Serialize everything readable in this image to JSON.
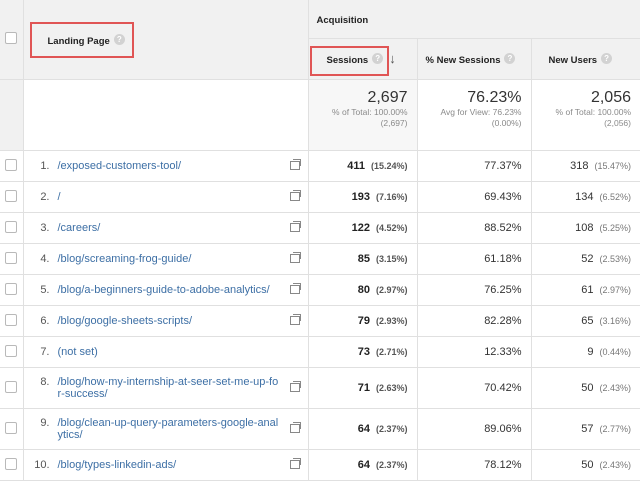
{
  "header": {
    "landing_page": "Landing Page",
    "acquisition": "Acquisition",
    "sessions": "Sessions",
    "new_sessions_pct": "% New Sessions",
    "new_users": "New Users",
    "help_glyph": "?",
    "sort_glyph": "↓"
  },
  "totals": {
    "sessions": {
      "value": "2,697",
      "sub1": "% of Total: 100.00%",
      "sub2": "(2,697)"
    },
    "new_sessions_pct": {
      "value": "76.23%",
      "sub1": "Avg for View: 76.23%",
      "sub2": "(0.00%)"
    },
    "new_users": {
      "value": "2,056",
      "sub1": "% of Total: 100.00%",
      "sub2": "(2,056)"
    }
  },
  "rows": [
    {
      "num": "1.",
      "page": "/exposed-customers-tool/",
      "sessions": "411",
      "sessions_pct": "(15.24%)",
      "new_pct": "77.37%",
      "new_users": "318",
      "new_users_pct": "(15.47%)"
    },
    {
      "num": "2.",
      "page": "/",
      "sessions": "193",
      "sessions_pct": "(7.16%)",
      "new_pct": "69.43%",
      "new_users": "134",
      "new_users_pct": "(6.52%)"
    },
    {
      "num": "3.",
      "page": "/careers/",
      "sessions": "122",
      "sessions_pct": "(4.52%)",
      "new_pct": "88.52%",
      "new_users": "108",
      "new_users_pct": "(5.25%)"
    },
    {
      "num": "4.",
      "page": "/blog/screaming-frog-guide/",
      "sessions": "85",
      "sessions_pct": "(3.15%)",
      "new_pct": "61.18%",
      "new_users": "52",
      "new_users_pct": "(2.53%)"
    },
    {
      "num": "5.",
      "page": "/blog/a-beginners-guide-to-adobe-analytics/",
      "sessions": "80",
      "sessions_pct": "(2.97%)",
      "new_pct": "76.25%",
      "new_users": "61",
      "new_users_pct": "(2.97%)"
    },
    {
      "num": "6.",
      "page": "/blog/google-sheets-scripts/",
      "sessions": "79",
      "sessions_pct": "(2.93%)",
      "new_pct": "82.28%",
      "new_users": "65",
      "new_users_pct": "(3.16%)"
    },
    {
      "num": "7.",
      "page": "(not set)",
      "sessions": "73",
      "sessions_pct": "(2.71%)",
      "new_pct": "12.33%",
      "new_users": "9",
      "new_users_pct": "(0.44%)"
    },
    {
      "num": "8.",
      "page": "/blog/how-my-internship-at-seer-set-me-up-for-success/",
      "sessions": "71",
      "sessions_pct": "(2.63%)",
      "new_pct": "70.42%",
      "new_users": "50",
      "new_users_pct": "(2.43%)"
    },
    {
      "num": "9.",
      "page": "/blog/clean-up-query-parameters-google-analytics/",
      "sessions": "64",
      "sessions_pct": "(2.37%)",
      "new_pct": "89.06%",
      "new_users": "57",
      "new_users_pct": "(2.77%)"
    },
    {
      "num": "10.",
      "page": "/blog/types-linkedin-ads/",
      "sessions": "64",
      "sessions_pct": "(2.37%)",
      "new_pct": "78.12%",
      "new_users": "50",
      "new_users_pct": "(2.43%)"
    }
  ],
  "colors": {
    "highlight": "#e05555",
    "link": "#3d6fa5",
    "header_bg": "#f1f1f1"
  }
}
